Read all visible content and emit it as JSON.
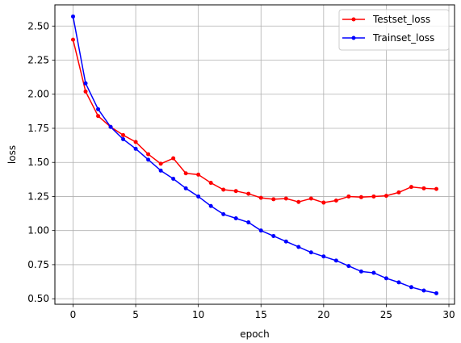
{
  "chart_data": {
    "type": "line",
    "title": "",
    "xlabel": "epoch",
    "ylabel": "loss",
    "xlim": [
      -1.45,
      30.45
    ],
    "ylim": [
      0.4595,
      2.6555
    ],
    "xticks": [
      0,
      5,
      10,
      15,
      20,
      25,
      30
    ],
    "xtick_labels": [
      "0",
      "5",
      "10",
      "15",
      "20",
      "25",
      "30"
    ],
    "yticks": [
      0.5,
      0.75,
      1.0,
      1.25,
      1.5,
      1.75,
      2.0,
      2.25,
      2.5
    ],
    "ytick_labels": [
      "0.50",
      "0.75",
      "1.00",
      "1.25",
      "1.50",
      "1.75",
      "2.00",
      "2.25",
      "2.50"
    ],
    "grid": true,
    "legend_position": "upper right",
    "x": [
      0,
      1,
      2,
      3,
      4,
      5,
      6,
      7,
      8,
      9,
      10,
      11,
      12,
      13,
      14,
      15,
      16,
      17,
      18,
      19,
      20,
      21,
      22,
      23,
      24,
      25,
      26,
      27,
      28,
      29
    ],
    "series": [
      {
        "name": "Testset_loss",
        "color": "#ff0000",
        "marker": "circle",
        "values": [
          2.4,
          2.02,
          1.84,
          1.76,
          1.7,
          1.65,
          1.56,
          1.49,
          1.53,
          1.42,
          1.41,
          1.35,
          1.3,
          1.29,
          1.27,
          1.24,
          1.23,
          1.235,
          1.21,
          1.235,
          1.205,
          1.22,
          1.25,
          1.245,
          1.25,
          1.255,
          1.28,
          1.32,
          1.31,
          1.305
        ]
      },
      {
        "name": "Trainset_loss",
        "color": "#0000ff",
        "marker": "circle",
        "values": [
          2.57,
          2.08,
          1.89,
          1.76,
          1.67,
          1.6,
          1.52,
          1.44,
          1.38,
          1.31,
          1.25,
          1.18,
          1.12,
          1.09,
          1.06,
          1.0,
          0.96,
          0.92,
          0.88,
          0.84,
          0.81,
          0.78,
          0.74,
          0.7,
          0.69,
          0.65,
          0.62,
          0.585,
          0.56,
          0.54
        ]
      }
    ]
  }
}
